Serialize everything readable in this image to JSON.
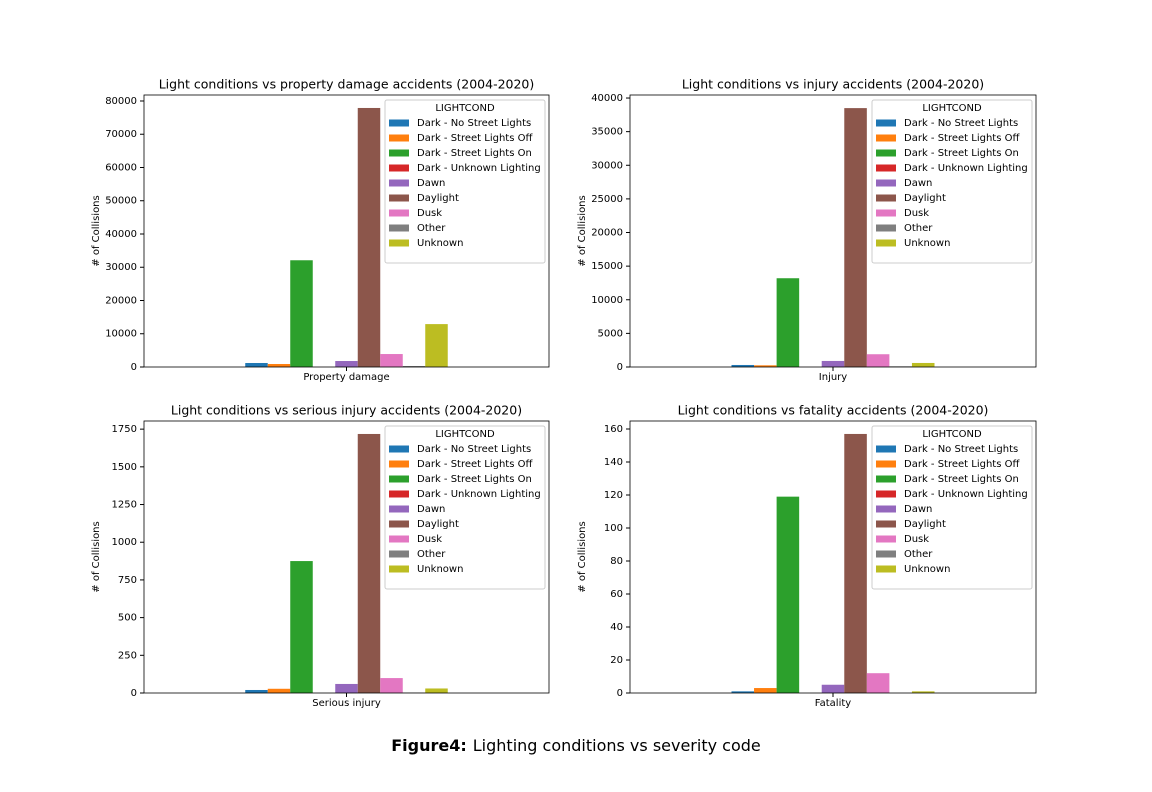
{
  "figure_caption": {
    "label": "Figure4:",
    "text": "Lighting conditions vs severity code"
  },
  "chart_data": [
    {
      "type": "bar",
      "title": "Light conditions vs property damage accidents (2004-2020)",
      "y_label": "# of Collisions",
      "categories": [
        "Property damage"
      ],
      "ylim": [
        0,
        81800
      ],
      "yticks": [
        0,
        10000,
        20000,
        30000,
        40000,
        50000,
        60000,
        70000,
        80000
      ],
      "legend_title": "LIGHTCOND",
      "legend": "upper right",
      "series": [
        {
          "name": "Dark - No Street Lights",
          "color": "#1f77b4",
          "values": [
            1200
          ]
        },
        {
          "name": "Dark - Street Lights Off",
          "color": "#ff7f0e",
          "values": [
            900
          ]
        },
        {
          "name": "Dark - Street Lights On",
          "color": "#2ca02c",
          "values": [
            32100
          ]
        },
        {
          "name": "Dark - Unknown Lighting",
          "color": "#d62728",
          "values": [
            5
          ]
        },
        {
          "name": "Dawn",
          "color": "#9467bd",
          "values": [
            1800
          ]
        },
        {
          "name": "Daylight",
          "color": "#8c564b",
          "values": [
            77900
          ]
        },
        {
          "name": "Dusk",
          "color": "#e377c2",
          "values": [
            3900
          ]
        },
        {
          "name": "Other",
          "color": "#7f7f7f",
          "values": [
            300
          ]
        },
        {
          "name": "Unknown",
          "color": "#bcbd22",
          "values": [
            12900
          ]
        }
      ]
    },
    {
      "type": "bar",
      "title": "Light conditions vs injury accidents (2004-2020)",
      "y_label": "# of Collisions",
      "categories": [
        "Injury"
      ],
      "ylim": [
        0,
        40450
      ],
      "yticks": [
        0,
        5000,
        10000,
        15000,
        20000,
        25000,
        30000,
        35000,
        40000
      ],
      "legend_title": "LIGHTCOND",
      "legend": "upper right",
      "series": [
        {
          "name": "Dark - No Street Lights",
          "color": "#1f77b4",
          "values": [
            300
          ]
        },
        {
          "name": "Dark - Street Lights Off",
          "color": "#ff7f0e",
          "values": [
            250
          ]
        },
        {
          "name": "Dark - Street Lights On",
          "color": "#2ca02c",
          "values": [
            13200
          ]
        },
        {
          "name": "Dark - Unknown Lighting",
          "color": "#d62728",
          "values": [
            5
          ]
        },
        {
          "name": "Dawn",
          "color": "#9467bd",
          "values": [
            900
          ]
        },
        {
          "name": "Daylight",
          "color": "#8c564b",
          "values": [
            38500
          ]
        },
        {
          "name": "Dusk",
          "color": "#e377c2",
          "values": [
            1900
          ]
        },
        {
          "name": "Other",
          "color": "#7f7f7f",
          "values": [
            100
          ]
        },
        {
          "name": "Unknown",
          "color": "#bcbd22",
          "values": [
            600
          ]
        }
      ]
    },
    {
      "type": "bar",
      "title": "Light conditions vs serious injury accidents (2004-2020)",
      "y_label": "# of Collisions",
      "categories": [
        "Serious injury"
      ],
      "ylim": [
        0,
        1804
      ],
      "yticks": [
        0,
        250,
        500,
        750,
        1000,
        1250,
        1500,
        1750
      ],
      "legend_title": "LIGHTCOND",
      "legend": "upper right",
      "series": [
        {
          "name": "Dark - No Street Lights",
          "color": "#1f77b4",
          "values": [
            20
          ]
        },
        {
          "name": "Dark - Street Lights Off",
          "color": "#ff7f0e",
          "values": [
            28
          ]
        },
        {
          "name": "Dark - Street Lights On",
          "color": "#2ca02c",
          "values": [
            875
          ]
        },
        {
          "name": "Dark - Unknown Lighting",
          "color": "#d62728",
          "values": [
            0
          ]
        },
        {
          "name": "Dawn",
          "color": "#9467bd",
          "values": [
            60
          ]
        },
        {
          "name": "Daylight",
          "color": "#8c564b",
          "values": [
            1718
          ]
        },
        {
          "name": "Dusk",
          "color": "#e377c2",
          "values": [
            99
          ]
        },
        {
          "name": "Other",
          "color": "#7f7f7f",
          "values": [
            3
          ]
        },
        {
          "name": "Unknown",
          "color": "#bcbd22",
          "values": [
            30
          ]
        }
      ]
    },
    {
      "type": "bar",
      "title": "Light conditions vs fatality accidents (2004-2020)",
      "y_label": "# of Collisions",
      "categories": [
        "Fatality"
      ],
      "ylim": [
        0,
        164.85
      ],
      "yticks": [
        0,
        20,
        40,
        60,
        80,
        100,
        120,
        140,
        160
      ],
      "legend_title": "LIGHTCOND",
      "legend": "upper right",
      "series": [
        {
          "name": "Dark - No Street Lights",
          "color": "#1f77b4",
          "values": [
            1
          ]
        },
        {
          "name": "Dark - Street Lights Off",
          "color": "#ff7f0e",
          "values": [
            3
          ]
        },
        {
          "name": "Dark - Street Lights On",
          "color": "#2ca02c",
          "values": [
            119
          ]
        },
        {
          "name": "Dark - Unknown Lighting",
          "color": "#d62728",
          "values": [
            0
          ]
        },
        {
          "name": "Dawn",
          "color": "#9467bd",
          "values": [
            5
          ]
        },
        {
          "name": "Daylight",
          "color": "#8c564b",
          "values": [
            157
          ]
        },
        {
          "name": "Dusk",
          "color": "#e377c2",
          "values": [
            12
          ]
        },
        {
          "name": "Other",
          "color": "#7f7f7f",
          "values": [
            0
          ]
        },
        {
          "name": "Unknown",
          "color": "#bcbd22",
          "values": [
            1
          ]
        }
      ]
    }
  ]
}
